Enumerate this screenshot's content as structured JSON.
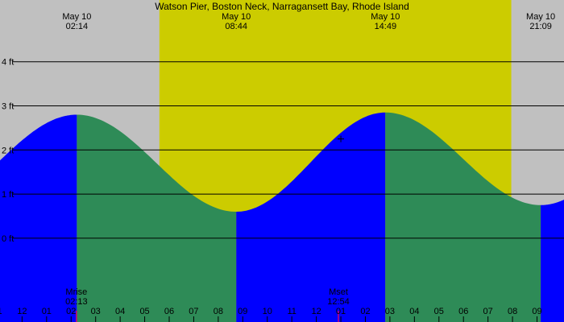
{
  "chart_data": {
    "type": "area",
    "title": "Watson Pier, Boston Neck, Narragansett Bay, Rhode Island",
    "x_range_hours": [
      -0.9,
      22.1
    ],
    "ylim": [
      -1.9,
      5.4
    ],
    "y_ticks": [
      {
        "value": 4,
        "label": "4 ft"
      },
      {
        "value": 3,
        "label": "3 ft"
      },
      {
        "value": 2,
        "label": "2 ft"
      },
      {
        "value": 1,
        "label": "1 ft"
      },
      {
        "value": 0,
        "label": "0 ft"
      }
    ],
    "daylight": {
      "start_hour": 5.6,
      "end_hour": 19.95
    },
    "tide_extremes": [
      {
        "date": "May 10",
        "time": "02:14",
        "hour": 2.233,
        "height": 2.8,
        "kind": "high"
      },
      {
        "date": "May 10",
        "time": "08:44",
        "hour": 8.733,
        "height": 0.6,
        "kind": "low"
      },
      {
        "date": "May 10",
        "time": "14:49",
        "hour": 14.817,
        "height": 2.85,
        "kind": "high"
      },
      {
        "date": "May 10",
        "time": "21:09",
        "hour": 21.15,
        "height": 0.75,
        "kind": "low"
      }
    ],
    "start_height": 1.45,
    "x_ticks": [
      {
        "hour": -1,
        "label": "11"
      },
      {
        "hour": 0,
        "label": "12"
      },
      {
        "hour": 1,
        "label": "01"
      },
      {
        "hour": 2,
        "label": "02"
      },
      {
        "hour": 3,
        "label": "03"
      },
      {
        "hour": 4,
        "label": "04"
      },
      {
        "hour": 5,
        "label": "05"
      },
      {
        "hour": 6,
        "label": "06"
      },
      {
        "hour": 7,
        "label": "07"
      },
      {
        "hour": 8,
        "label": "08"
      },
      {
        "hour": 9,
        "label": "09"
      },
      {
        "hour": 10,
        "label": "10"
      },
      {
        "hour": 11,
        "label": "11"
      },
      {
        "hour": 12,
        "label": "12"
      },
      {
        "hour": 13,
        "label": "01"
      },
      {
        "hour": 14,
        "label": "02"
      },
      {
        "hour": 15,
        "label": "03"
      },
      {
        "hour": 16,
        "label": "04"
      },
      {
        "hour": 17,
        "label": "05"
      },
      {
        "hour": 18,
        "label": "06"
      },
      {
        "hour": 19,
        "label": "07"
      },
      {
        "hour": 20,
        "label": "08"
      },
      {
        "hour": 21,
        "label": "09"
      }
    ],
    "moon_events": [
      {
        "label": "Mrise",
        "time": "02:13",
        "hour": 2.217
      },
      {
        "label": "Mset",
        "time": "12:54",
        "hour": 12.9
      }
    ],
    "now_marker": {
      "hour": 13.0,
      "height": 2.25
    },
    "colors": {
      "night": "#c0c0c0",
      "day": "#cccc00",
      "rising": "#0000ff",
      "falling": "#2e8b57",
      "moon_tick": "#cc0077"
    }
  }
}
